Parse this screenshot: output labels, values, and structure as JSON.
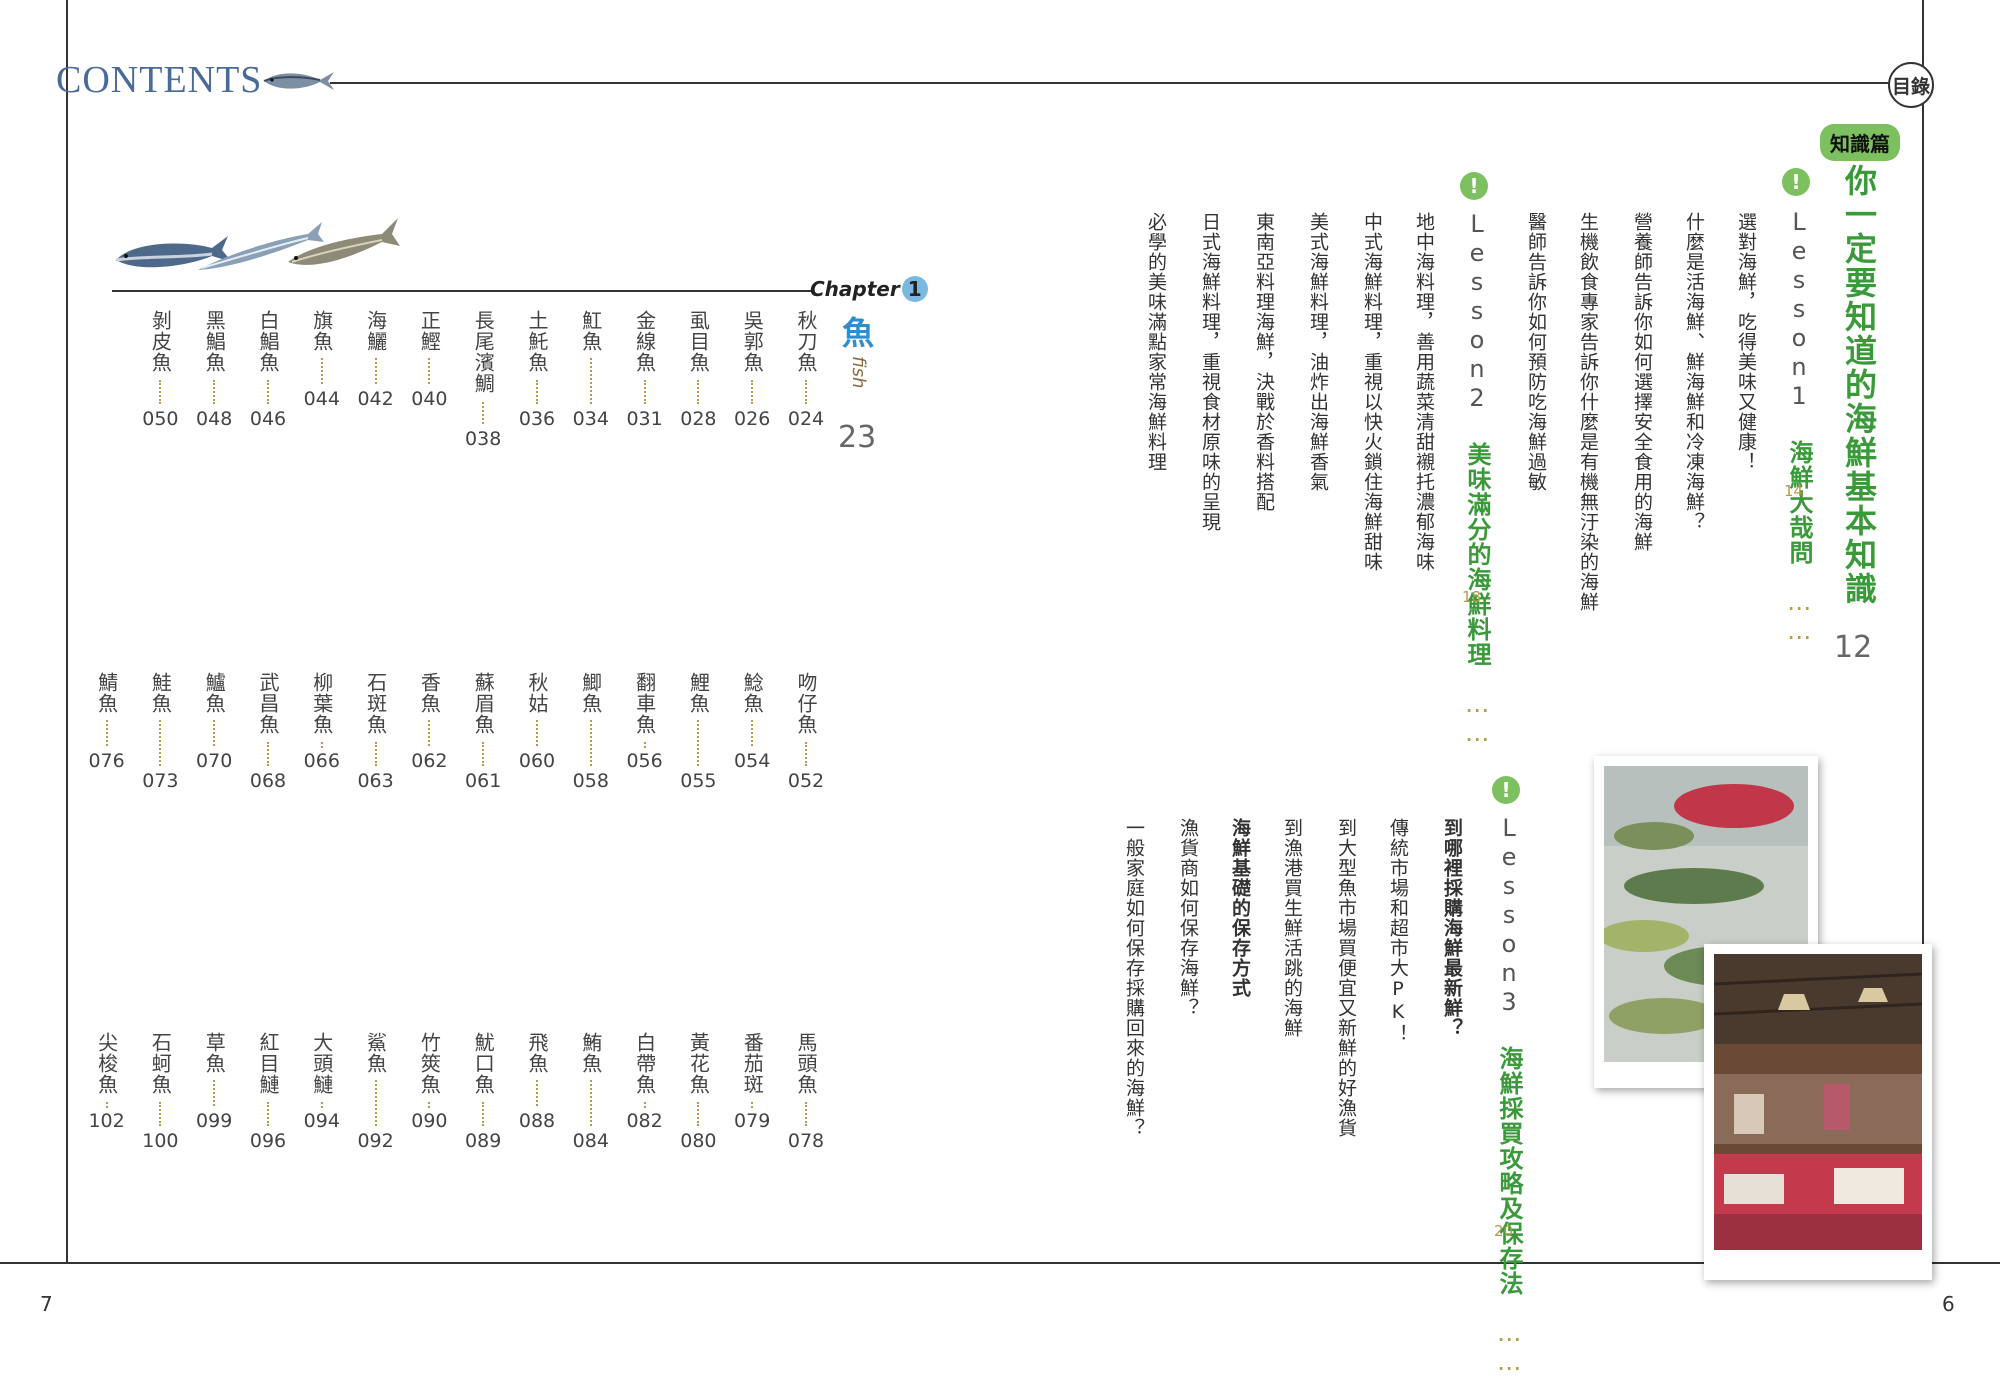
{
  "header": {
    "contents_label": "CONTENTS",
    "mulu_label": "目錄"
  },
  "footer": {
    "left_page": "7",
    "right_page": "6"
  },
  "chapter1": {
    "label": "Chapter",
    "number": "1",
    "title": "魚",
    "title_en": "fish",
    "page": "23"
  },
  "fish_rows": [
    [
      {
        "name": "秋刀魚",
        "page": "024"
      },
      {
        "name": "吳郭魚",
        "page": "026"
      },
      {
        "name": "虱目魚",
        "page": "028"
      },
      {
        "name": "金線魚",
        "page": "031"
      },
      {
        "name": "魟魚",
        "page": "034"
      },
      {
        "name": "土魠魚",
        "page": "036"
      },
      {
        "name": "長尾濱鯛",
        "page": "038"
      },
      {
        "name": "正鰹",
        "page": "040"
      },
      {
        "name": "海鱺",
        "page": "042"
      },
      {
        "name": "旗魚",
        "page": "044"
      },
      {
        "name": "白鯧魚",
        "page": "046"
      },
      {
        "name": "黑鯧魚",
        "page": "048"
      },
      {
        "name": "剝皮魚",
        "page": "050"
      }
    ],
    [
      {
        "name": "吻仔魚",
        "page": "052"
      },
      {
        "name": "鯰魚",
        "page": "054"
      },
      {
        "name": "鯉魚",
        "page": "055"
      },
      {
        "name": "翻車魚",
        "page": "056"
      },
      {
        "name": "鯽魚",
        "page": "058"
      },
      {
        "name": "秋姑",
        "page": "060"
      },
      {
        "name": "蘇眉魚",
        "page": "061"
      },
      {
        "name": "香魚",
        "page": "062"
      },
      {
        "name": "石斑魚",
        "page": "063"
      },
      {
        "name": "柳葉魚",
        "page": "066"
      },
      {
        "name": "武昌魚",
        "page": "068"
      },
      {
        "name": "鱸魚",
        "page": "070"
      },
      {
        "name": "鮭魚",
        "page": "073"
      },
      {
        "name": "鯖魚",
        "page": "076"
      }
    ],
    [
      {
        "name": "馬頭魚",
        "page": "078"
      },
      {
        "name": "番茄斑",
        "page": "079"
      },
      {
        "name": "黃花魚",
        "page": "080"
      },
      {
        "name": "白帶魚",
        "page": "082"
      },
      {
        "name": "鮪魚",
        "page": "084"
      },
      {
        "name": "飛魚",
        "page": "088"
      },
      {
        "name": "魷口魚",
        "page": "089"
      },
      {
        "name": "竹筴魚",
        "page": "090"
      },
      {
        "name": "鯊魚",
        "page": "092"
      },
      {
        "name": "大頭鰱",
        "page": "094"
      },
      {
        "name": "紅目鰱",
        "page": "096"
      },
      {
        "name": "草魚",
        "page": "099"
      },
      {
        "name": "石蚵魚",
        "page": "100"
      },
      {
        "name": "尖梭魚",
        "page": "102"
      }
    ]
  ],
  "knowledge": {
    "tag": "知識篇",
    "title": "你一定要知道的海鮮基本知識",
    "page": "12",
    "lessons": [
      {
        "label": "Lesson1",
        "title": "海鮮大哉問",
        "dots": "⋯⋯",
        "page": "14",
        "items": [
          "選對海鮮，吃得美味又健康！",
          "什麼是活海鮮、鮮海鮮和冷凍海鮮？",
          "營養師告訴你如何選擇安全食用的海鮮",
          "生機飲食專家告訴你什麼是有機無汙染的海鮮",
          "醫師告訴你如何預防吃海鮮過敏"
        ]
      },
      {
        "label": "Lesson2",
        "title": "美味滿分的海鮮料理",
        "dots": "⋯⋯",
        "page": "18",
        "items": [
          "地中海料理，善用蔬菜清甜襯托濃郁海味",
          "中式海鮮料理，重視以快火鎖住海鮮甜味",
          "美式海鮮料理，油炸出海鮮香氣",
          "東南亞料理海鮮，決戰於香料搭配",
          "日式海鮮料理，重視食材原味的呈現",
          "必學的美味滿點家常海鮮料理"
        ]
      },
      {
        "label": "Lesson3",
        "title": "海鮮採買攻略及保存法",
        "dots": "⋯⋯",
        "page": "20",
        "items": [
          "到哪裡採購海鮮最新鮮？",
          "傳統市場和超市大PK！",
          "到大型魚市場買便宜又新鮮的好漁貨",
          "到漁港買生鮮活跳的海鮮",
          "海鮮基礎的保存方式",
          "漁貨商如何保存海鮮？",
          "一般家庭如何保存採購回來的海鮮？"
        ]
      }
    ]
  }
}
